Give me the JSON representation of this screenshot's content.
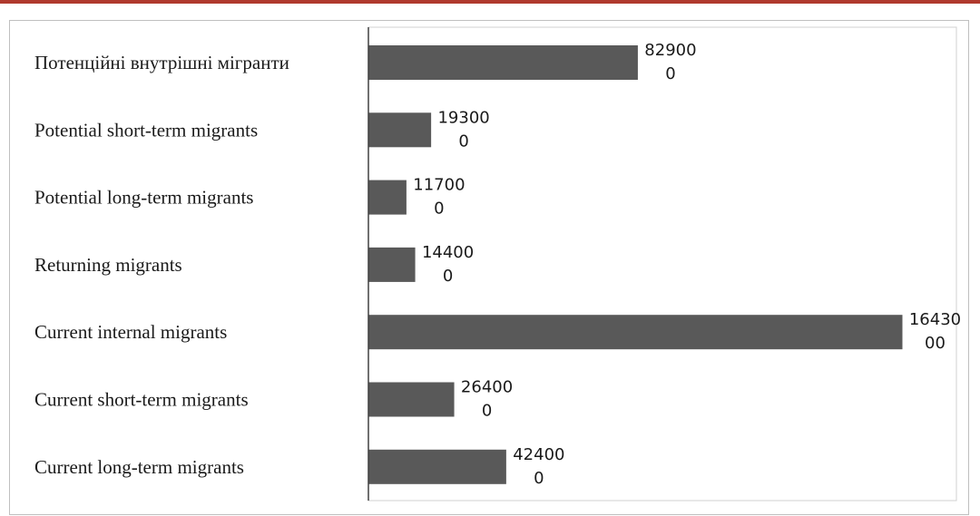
{
  "chart_data": {
    "type": "bar",
    "orientation": "horizontal",
    "categories": [
      "Потенційні внутрішні мігранти",
      "Potential short-term migrants",
      "Potential long-term migrants",
      "Returning migrants",
      "Current internal migrants",
      "Current short-term migrants",
      "Current long-term migrants"
    ],
    "values": [
      829000,
      193000,
      117000,
      144000,
      1643000,
      264000,
      424000
    ],
    "value_labels": [
      [
        "82900",
        "0"
      ],
      [
        "19300",
        "0"
      ],
      [
        "11700",
        "0"
      ],
      [
        "14400",
        "0"
      ],
      [
        "16430",
        "00"
      ],
      [
        "26400",
        "0"
      ],
      [
        "42400",
        "0"
      ]
    ],
    "xlim": [
      0,
      1650000
    ],
    "bar_color": "#595959",
    "grid": false
  }
}
